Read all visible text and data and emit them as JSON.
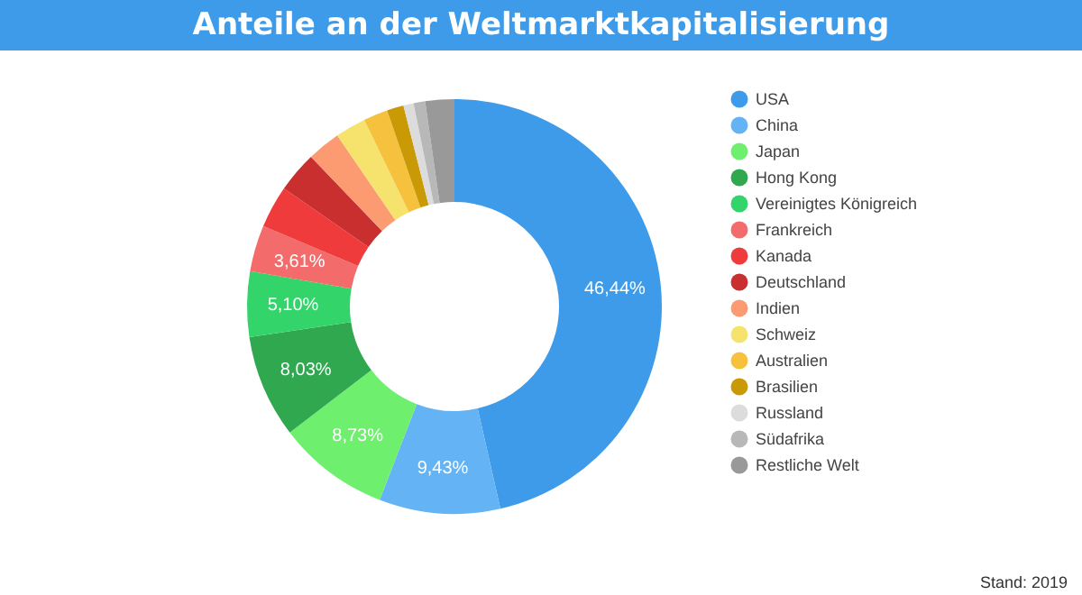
{
  "chart_data": {
    "type": "donut",
    "title": "Anteile an der Weltmarktkapitalisierung",
    "categories": [
      "USA",
      "China",
      "Japan",
      "Hong Kong",
      "Vereinigtes Königreich",
      "Frankreich",
      "Kanada",
      "Deutschland",
      "Indien",
      "Schweiz",
      "Australien",
      "Brasilien",
      "Russland",
      "Südafrika",
      "Restliche Welt"
    ],
    "values": [
      46.44,
      9.43,
      8.73,
      8.03,
      5.1,
      3.61,
      3.3,
      3.2,
      2.6,
      2.4,
      1.9,
      1.3,
      0.8,
      0.9,
      2.26
    ],
    "value_labels": [
      "46,44%",
      "9,43%",
      "8,73%",
      "8,03%",
      "5,10%",
      "3,61%",
      null,
      null,
      null,
      null,
      null,
      null,
      null,
      null,
      null
    ],
    "colors": [
      "#3d9be9",
      "#63b3f5",
      "#6ef06e",
      "#2fa84f",
      "#33d46a",
      "#f36b6b",
      "#ef3b3b",
      "#c92f2f",
      "#fc9a72",
      "#f5e36e",
      "#f6c23e",
      "#c99a06",
      "#dcdcdc",
      "#b8b8b8",
      "#999999"
    ],
    "legend": "right",
    "annotations": [
      "Stand: 2019"
    ]
  }
}
